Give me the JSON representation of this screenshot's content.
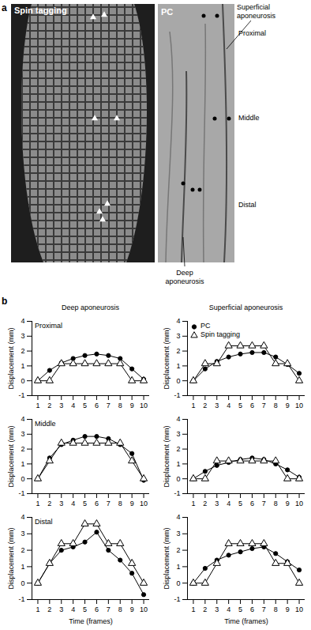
{
  "panel_a": {
    "label": "a",
    "images": [
      {
        "title": "Spin tagging"
      },
      {
        "title": "PC"
      }
    ],
    "superficial_label": "Superficial aponeurosis",
    "deep_label": "Deep aponeurosis",
    "levels": [
      "Proximal",
      "Middle",
      "Distal"
    ]
  },
  "panel_b": {
    "label": "b",
    "column_titles": [
      "Deep aponeurosis",
      "Superficial aponeurosis"
    ]
  },
  "chart_data": [
    {
      "type": "line",
      "title": "Proximal",
      "x": [
        1,
        2,
        3,
        4,
        5,
        6,
        7,
        8,
        9,
        10
      ],
      "xlim": [
        0.5,
        10.5
      ],
      "xticks": [
        1,
        2,
        3,
        4,
        5,
        6,
        7,
        8,
        9,
        10
      ],
      "ylim": [
        -1,
        4
      ],
      "yticks": [
        -1,
        0,
        1,
        2,
        3,
        4
      ],
      "y_label": "Displacement (mm)",
      "series": [
        {
          "name": "PC",
          "color": "#000000",
          "marker": "circle",
          "values": [
            0,
            0.7,
            1.2,
            1.5,
            1.7,
            1.8,
            1.7,
            1.5,
            0.8,
            0.1
          ]
        },
        {
          "name": "Spin tagging",
          "color": "#000000",
          "marker": "triangle",
          "values": [
            0,
            0,
            1.15,
            1.15,
            1.15,
            1.15,
            1.15,
            1.15,
            0,
            0
          ]
        }
      ]
    },
    {
      "type": "line",
      "x": [
        1,
        2,
        3,
        4,
        5,
        6,
        7,
        8,
        9,
        10
      ],
      "xlim": [
        0.5,
        10.5
      ],
      "xticks": [
        1,
        2,
        3,
        4,
        5,
        6,
        7,
        8,
        9,
        10
      ],
      "ylim": [
        -1,
        4
      ],
      "yticks": [
        -1,
        0,
        1,
        2,
        3,
        4
      ],
      "y_label": "Displacement (mm)",
      "legend": "top-left",
      "series": [
        {
          "name": "PC",
          "color": "#000000",
          "marker": "circle",
          "values": [
            0,
            0.8,
            1.3,
            1.6,
            1.8,
            1.9,
            1.9,
            1.6,
            1.1,
            0.5
          ]
        },
        {
          "name": "Spin tagging",
          "color": "#000000",
          "marker": "triangle",
          "values": [
            0,
            1.15,
            1.15,
            2.35,
            2.35,
            2.35,
            2.35,
            1.15,
            1.15,
            0
          ]
        }
      ]
    },
    {
      "type": "line",
      "title": "Middle",
      "x": [
        1,
        2,
        3,
        4,
        5,
        6,
        7,
        8,
        9,
        10
      ],
      "xlim": [
        0.5,
        10.5
      ],
      "xticks": [
        1,
        2,
        3,
        4,
        5,
        6,
        7,
        8,
        9,
        10
      ],
      "ylim": [
        -1,
        4
      ],
      "yticks": [
        -1,
        0,
        1,
        2,
        3,
        4
      ],
      "y_label": "Displacement (mm)",
      "series": [
        {
          "name": "PC",
          "color": "#000000",
          "marker": "circle",
          "values": [
            0,
            1.4,
            2.3,
            2.6,
            2.85,
            2.85,
            2.7,
            2.3,
            1.7,
            -0.1
          ]
        },
        {
          "name": "Spin tagging",
          "color": "#000000",
          "marker": "triangle",
          "values": [
            0,
            1.2,
            2.4,
            2.4,
            2.4,
            2.4,
            2.4,
            2.4,
            1.2,
            0
          ]
        }
      ]
    },
    {
      "type": "line",
      "x": [
        1,
        2,
        3,
        4,
        5,
        6,
        7,
        8,
        9,
        10
      ],
      "xlim": [
        0.5,
        10.5
      ],
      "xticks": [
        1,
        2,
        3,
        4,
        5,
        6,
        7,
        8,
        9,
        10
      ],
      "ylim": [
        -1,
        4
      ],
      "yticks": [
        -1,
        0,
        1,
        2,
        3,
        4
      ],
      "y_label": "Displacement (mm)",
      "series": [
        {
          "name": "PC",
          "color": "#000000",
          "marker": "circle",
          "values": [
            0,
            0.5,
            0.9,
            1.1,
            1.3,
            1.4,
            1.3,
            1.0,
            0.6,
            0.1
          ]
        },
        {
          "name": "Spin tagging",
          "color": "#000000",
          "marker": "triangle",
          "values": [
            0,
            0,
            1.2,
            1.2,
            1.2,
            1.2,
            1.2,
            1.2,
            0,
            0
          ]
        }
      ]
    },
    {
      "type": "line",
      "title": "Distal",
      "x": [
        1,
        2,
        3,
        4,
        5,
        6,
        7,
        8,
        9,
        10
      ],
      "xlim": [
        0.5,
        10.5
      ],
      "xticks": [
        1,
        2,
        3,
        4,
        5,
        6,
        7,
        8,
        9,
        10
      ],
      "ylim": [
        -1,
        4
      ],
      "yticks": [
        -1,
        0,
        1,
        2,
        3,
        4
      ],
      "y_label": "Displacement (mm)",
      "x_label": "Time (frames)",
      "series": [
        {
          "name": "PC",
          "color": "#000000",
          "marker": "circle",
          "values": [
            0,
            1.2,
            2.0,
            2.2,
            2.5,
            3.1,
            2.0,
            1.4,
            0.6,
            -0.7
          ]
        },
        {
          "name": "Spin tagging",
          "color": "#000000",
          "marker": "triangle",
          "values": [
            0,
            1.2,
            2.4,
            2.4,
            3.6,
            3.6,
            2.4,
            2.4,
            1.2,
            0
          ]
        }
      ]
    },
    {
      "type": "line",
      "x": [
        1,
        2,
        3,
        4,
        5,
        6,
        7,
        8,
        9,
        10
      ],
      "xlim": [
        0.5,
        10.5
      ],
      "xticks": [
        1,
        2,
        3,
        4,
        5,
        6,
        7,
        8,
        9,
        10
      ],
      "ylim": [
        -1,
        4
      ],
      "yticks": [
        -1,
        0,
        1,
        2,
        3,
        4
      ],
      "y_label": "Displacement (mm)",
      "x_label": "Time (frames)",
      "series": [
        {
          "name": "PC",
          "color": "#000000",
          "marker": "circle",
          "values": [
            0,
            0.9,
            1.4,
            1.7,
            1.9,
            2.1,
            2.2,
            1.8,
            1.3,
            0.8
          ]
        },
        {
          "name": "Spin tagging",
          "color": "#000000",
          "marker": "triangle",
          "values": [
            0,
            0,
            1.2,
            2.4,
            2.4,
            2.4,
            2.4,
            1.2,
            1.2,
            0
          ]
        }
      ]
    }
  ]
}
